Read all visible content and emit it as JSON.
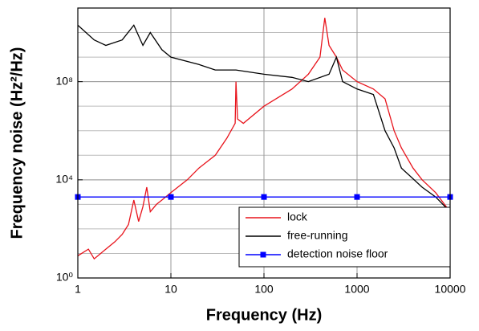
{
  "chart_data": {
    "type": "line",
    "xlabel": "Frequency (Hz)",
    "ylabel": "Frequency noise (Hz²/Hz)",
    "log_x": true,
    "log_y": true,
    "grid": true,
    "xlim": [
      1,
      10000
    ],
    "ylim": [
      1,
      100000000000
    ],
    "xticks": [
      1,
      10,
      100,
      1000,
      10000
    ],
    "yticks": [
      {
        "value": 1,
        "label": "10⁰"
      },
      {
        "value": 10000,
        "label": "10⁴"
      },
      {
        "value": 100000000,
        "label": "10⁸"
      }
    ],
    "legend": "lower right",
    "series": [
      {
        "name": "lock",
        "color": "#e8141c",
        "x": [
          1,
          1.3,
          1.5,
          2,
          2.5,
          3,
          3.5,
          4,
          4.5,
          5,
          5.5,
          6,
          7,
          8,
          10,
          15,
          20,
          30,
          40,
          49,
          50,
          52,
          60,
          100,
          200,
          300,
          400,
          450,
          500,
          600,
          700,
          1000,
          1500,
          2000,
          2500,
          3000,
          4000,
          5000,
          7000,
          10000
        ],
        "values": [
          8,
          15,
          6,
          15,
          30,
          60,
          150,
          1500,
          200,
          800,
          5000,
          500,
          1000,
          1500,
          3000,
          10000,
          30000,
          100000,
          500000,
          2000000,
          100000000,
          3000000,
          2000000,
          10000000,
          50000000,
          200000000,
          1000000000,
          40000000000,
          3000000000,
          1000000000,
          300000000,
          100000000,
          50000000,
          20000000,
          1000000,
          200000,
          30000,
          10000,
          3000,
          500
        ]
      },
      {
        "name": "free-running",
        "color": "#000000",
        "x": [
          1,
          1.5,
          2,
          3,
          4,
          5,
          6,
          8,
          10,
          20,
          30,
          50,
          100,
          200,
          300,
          500,
          600,
          700,
          1000,
          1500,
          2000,
          2500,
          3000,
          5000,
          7000,
          10000
        ],
        "values": [
          20000000000,
          5000000000,
          3000000000,
          5000000000,
          20000000000,
          3000000000,
          10000000000,
          2000000000,
          1000000000,
          500000000,
          300000000,
          300000000,
          200000000,
          150000000,
          100000000,
          200000000,
          1000000000,
          100000000,
          50000000,
          30000000,
          1000000,
          200000,
          30000,
          5000,
          2000,
          500
        ]
      },
      {
        "name": "detection noise floor",
        "color": "#0000ff",
        "marker": "square",
        "x": [
          1,
          10,
          100,
          1000,
          10000
        ],
        "values": [
          2000,
          2000,
          2000,
          2000,
          2000
        ]
      }
    ]
  }
}
